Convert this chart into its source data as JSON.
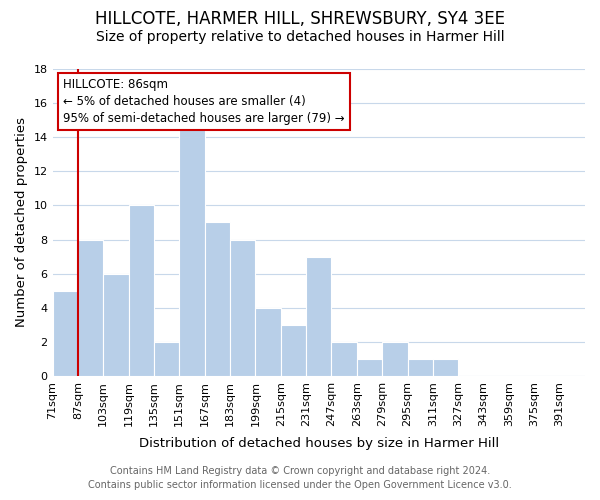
{
  "title": "HILLCOTE, HARMER HILL, SHREWSBURY, SY4 3EE",
  "subtitle": "Size of property relative to detached houses in Harmer Hill",
  "xlabel": "Distribution of detached houses by size in Harmer Hill",
  "ylabel": "Number of detached properties",
  "bin_labels": [
    "71sqm",
    "87sqm",
    "103sqm",
    "119sqm",
    "135sqm",
    "151sqm",
    "167sqm",
    "183sqm",
    "199sqm",
    "215sqm",
    "231sqm",
    "247sqm",
    "263sqm",
    "279sqm",
    "295sqm",
    "311sqm",
    "327sqm",
    "343sqm",
    "359sqm",
    "375sqm",
    "391sqm"
  ],
  "bar_heights": [
    5,
    8,
    6,
    10,
    2,
    15,
    9,
    8,
    4,
    3,
    7,
    2,
    1,
    2,
    1,
    1,
    0,
    0,
    0,
    0,
    0
  ],
  "bar_color": "#b8cfe8",
  "bar_edge_color": "#ffffff",
  "ylim": [
    0,
    18
  ],
  "yticks": [
    0,
    2,
    4,
    6,
    8,
    10,
    12,
    14,
    16,
    18
  ],
  "annotation_line1": "HILLCOTE: 86sqm",
  "annotation_line2": "← 5% of detached houses are smaller (4)",
  "annotation_line3": "95% of semi-detached houses are larger (79) →",
  "footnote1": "Contains HM Land Registry data © Crown copyright and database right 2024.",
  "footnote2": "Contains public sector information licensed under the Open Government Licence v3.0.",
  "background_color": "#ffffff",
  "grid_color": "#c8d8ea",
  "marker_line_color": "#cc0000",
  "annotation_box_color": "#ffffff",
  "annotation_box_edge_color": "#cc0000",
  "title_fontsize": 12,
  "subtitle_fontsize": 10,
  "axis_label_fontsize": 9.5,
  "tick_fontsize": 8,
  "annotation_fontsize": 8.5,
  "footnote_fontsize": 7
}
